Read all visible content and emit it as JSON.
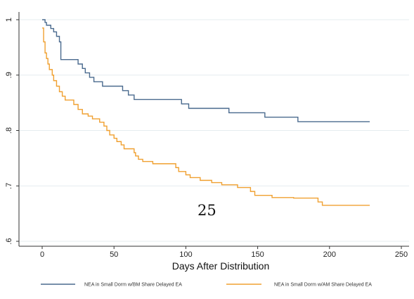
{
  "page_number": "25",
  "chart_data": {
    "type": "line",
    "title": "",
    "xlabel": "Days After Distribution",
    "ylabel": "",
    "xlim": [
      -5,
      250
    ],
    "ylim": [
      0.6,
      1.0
    ],
    "x_ticks": [
      0,
      50,
      100,
      150,
      200,
      250
    ],
    "x_tick_labels": [
      "0",
      "50",
      "100",
      "150",
      "200",
      "250"
    ],
    "y_ticks": [
      0.6,
      0.7,
      0.8,
      0.9,
      1.0
    ],
    "y_tick_labels": [
      ".6",
      ".7",
      ".8",
      ".9",
      "1"
    ],
    "grid": true,
    "legend_position": "bottom",
    "series": [
      {
        "name": "NEA in Small Dorm w/BM Share Delayed EA",
        "color": "#4a6a8e",
        "step": true,
        "points": [
          [
            0,
            1.0
          ],
          [
            2,
            0.995
          ],
          [
            3,
            0.99
          ],
          [
            6,
            0.984
          ],
          [
            8,
            0.978
          ],
          [
            10,
            0.97
          ],
          [
            12,
            0.96
          ],
          [
            13,
            0.928
          ],
          [
            20,
            0.928
          ],
          [
            25,
            0.92
          ],
          [
            28,
            0.912
          ],
          [
            30,
            0.904
          ],
          [
            33,
            0.896
          ],
          [
            36,
            0.888
          ],
          [
            42,
            0.88
          ],
          [
            56,
            0.872
          ],
          [
            60,
            0.864
          ],
          [
            64,
            0.856
          ],
          [
            97,
            0.848
          ],
          [
            102,
            0.84
          ],
          [
            130,
            0.832
          ],
          [
            155,
            0.824
          ],
          [
            178,
            0.816
          ],
          [
            228,
            0.816
          ]
        ]
      },
      {
        "name": "NEA in Small Dorm w/AM Share Delayed EA",
        "color": "#f0a030",
        "step": true,
        "points": [
          [
            0,
            0.985
          ],
          [
            1,
            0.96
          ],
          [
            2,
            0.94
          ],
          [
            3,
            0.93
          ],
          [
            4,
            0.92
          ],
          [
            5,
            0.91
          ],
          [
            7,
            0.9
          ],
          [
            8,
            0.89
          ],
          [
            10,
            0.88
          ],
          [
            12,
            0.87
          ],
          [
            14,
            0.862
          ],
          [
            16,
            0.855
          ],
          [
            22,
            0.847
          ],
          [
            25,
            0.838
          ],
          [
            28,
            0.83
          ],
          [
            32,
            0.826
          ],
          [
            35,
            0.821
          ],
          [
            40,
            0.815
          ],
          [
            43,
            0.808
          ],
          [
            45,
            0.8
          ],
          [
            47,
            0.792
          ],
          [
            50,
            0.786
          ],
          [
            52,
            0.78
          ],
          [
            55,
            0.774
          ],
          [
            57,
            0.767
          ],
          [
            64,
            0.76
          ],
          [
            65,
            0.754
          ],
          [
            67,
            0.748
          ],
          [
            70,
            0.744
          ],
          [
            77,
            0.74
          ],
          [
            93,
            0.733
          ],
          [
            95,
            0.726
          ],
          [
            100,
            0.72
          ],
          [
            103,
            0.715
          ],
          [
            110,
            0.71
          ],
          [
            118,
            0.706
          ],
          [
            125,
            0.702
          ],
          [
            136,
            0.697
          ],
          [
            145,
            0.69
          ],
          [
            148,
            0.683
          ],
          [
            160,
            0.679
          ],
          [
            175,
            0.678
          ],
          [
            192,
            0.671
          ],
          [
            195,
            0.665
          ],
          [
            228,
            0.665
          ]
        ]
      }
    ]
  }
}
